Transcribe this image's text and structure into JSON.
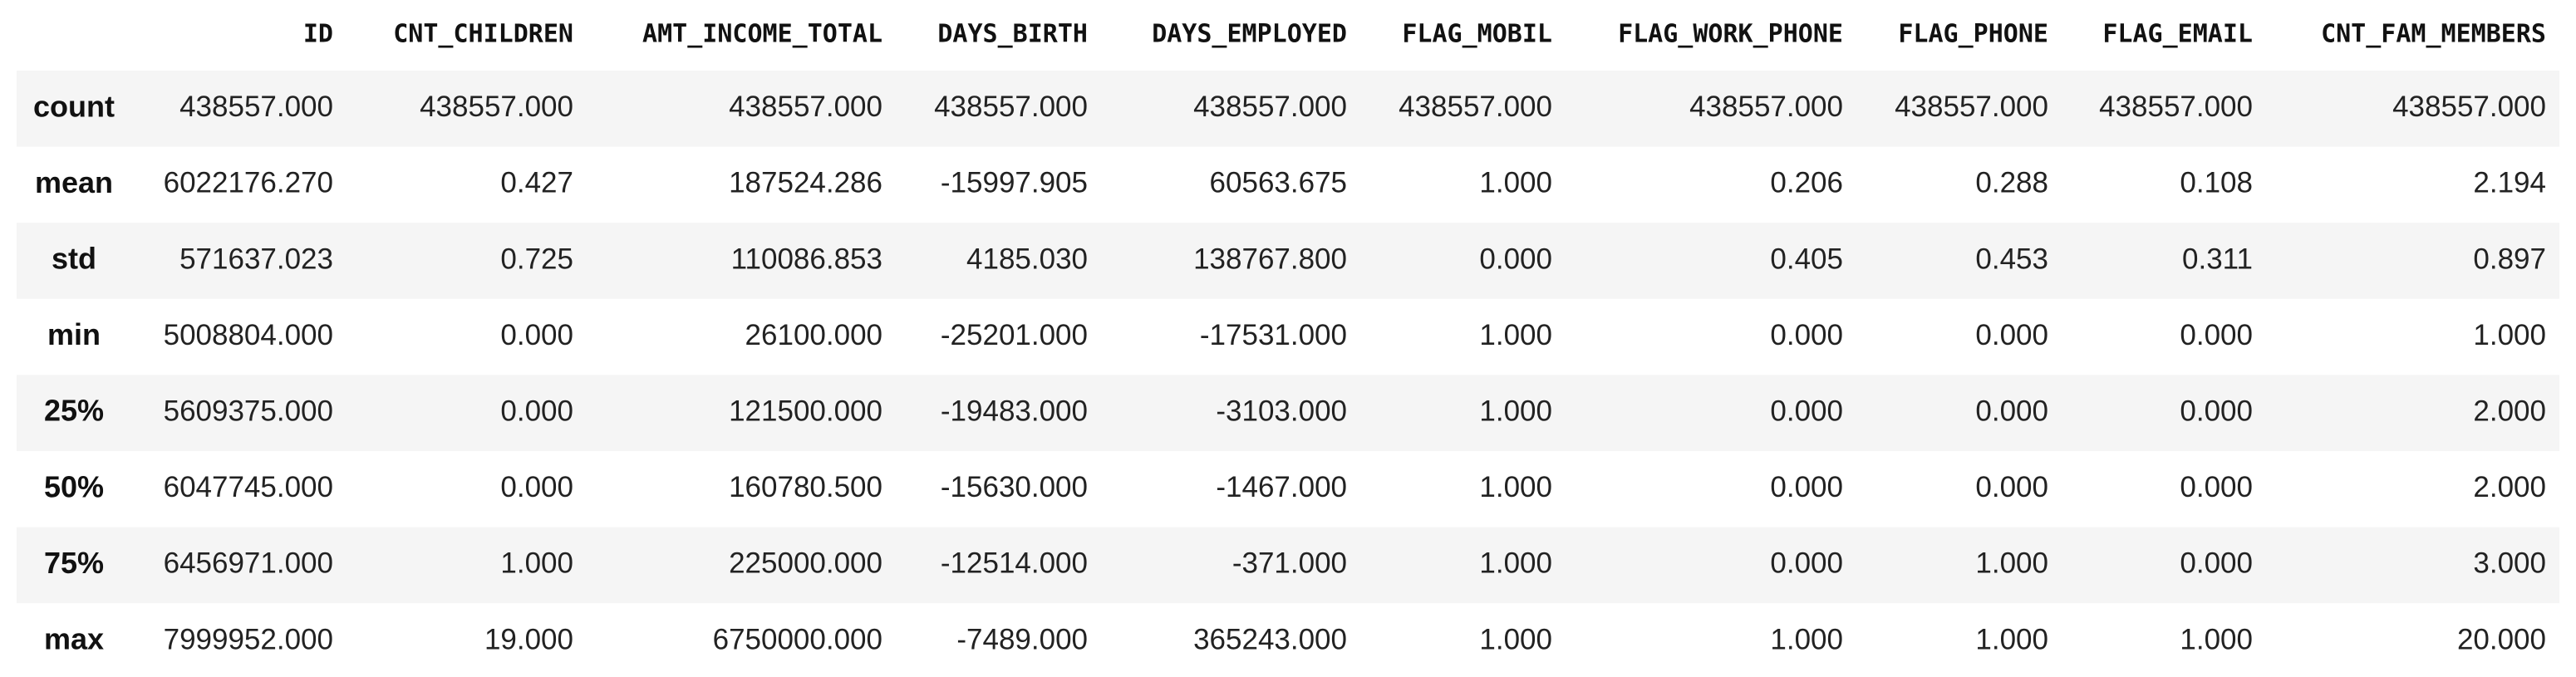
{
  "table": {
    "columns": [
      "ID",
      "CNT_CHILDREN",
      "AMT_INCOME_TOTAL",
      "DAYS_BIRTH",
      "DAYS_EMPLOYED",
      "FLAG_MOBIL",
      "FLAG_WORK_PHONE",
      "FLAG_PHONE",
      "FLAG_EMAIL",
      "CNT_FAM_MEMBERS"
    ],
    "index": [
      "count",
      "mean",
      "std",
      "min",
      "25%",
      "50%",
      "75%",
      "max"
    ],
    "rows": [
      [
        "438557.000",
        "438557.000",
        "438557.000",
        "438557.000",
        "438557.000",
        "438557.000",
        "438557.000",
        "438557.000",
        "438557.000",
        "438557.000"
      ],
      [
        "6022176.270",
        "0.427",
        "187524.286",
        "-15997.905",
        "60563.675",
        "1.000",
        "0.206",
        "0.288",
        "0.108",
        "2.194"
      ],
      [
        "571637.023",
        "0.725",
        "110086.853",
        "4185.030",
        "138767.800",
        "0.000",
        "0.405",
        "0.453",
        "0.311",
        "0.897"
      ],
      [
        "5008804.000",
        "0.000",
        "26100.000",
        "-25201.000",
        "-17531.000",
        "1.000",
        "0.000",
        "0.000",
        "0.000",
        "1.000"
      ],
      [
        "5609375.000",
        "0.000",
        "121500.000",
        "-19483.000",
        "-3103.000",
        "1.000",
        "0.000",
        "0.000",
        "0.000",
        "2.000"
      ],
      [
        "6047745.000",
        "0.000",
        "160780.500",
        "-15630.000",
        "-1467.000",
        "1.000",
        "0.000",
        "0.000",
        "0.000",
        "2.000"
      ],
      [
        "6456971.000",
        "1.000",
        "225000.000",
        "-12514.000",
        "-371.000",
        "1.000",
        "0.000",
        "1.000",
        "0.000",
        "3.000"
      ],
      [
        "7999952.000",
        "19.000",
        "6750000.000",
        "-7489.000",
        "365243.000",
        "1.000",
        "1.000",
        "1.000",
        "1.000",
        "20.000"
      ]
    ]
  }
}
